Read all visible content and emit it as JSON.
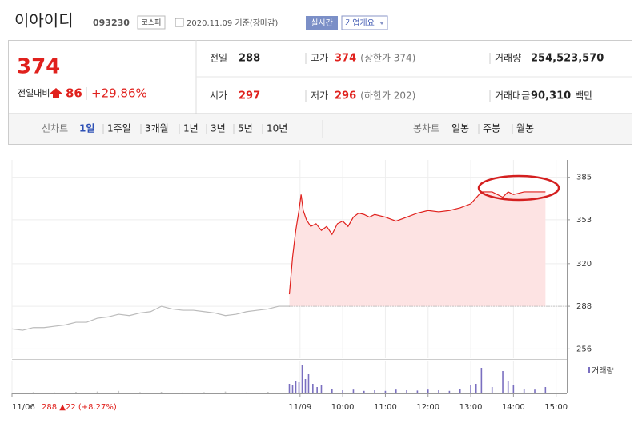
{
  "header": {
    "title": "이아이디",
    "code": "093230",
    "market": "코스피",
    "date": "2020.11.09 기준(장마감)",
    "realtime": "실시간",
    "company_info": "기업개요"
  },
  "quote": {
    "price": "374",
    "change_label": "전일대비",
    "change": "86",
    "change_pct": "+29.86%",
    "fields": [
      {
        "label": "전일",
        "value": "288",
        "color": "#222"
      },
      {
        "label": "고가",
        "value": "374",
        "extra": "(상한가 374)",
        "color": "#e0211d"
      },
      {
        "label": "거래량",
        "value": "254,523,570",
        "color": "#222"
      },
      {
        "label": "시가",
        "value": "297",
        "color": "#e0211d"
      },
      {
        "label": "저가",
        "value": "296",
        "extra": "(하한가 202)",
        "color": "#e0211d"
      },
      {
        "label": "거래대금",
        "value": "90,310",
        "extra": "백만",
        "color": "#222"
      }
    ]
  },
  "tabs": {
    "line_label": "선차트",
    "line": [
      "1일",
      "1주일",
      "3개월",
      "1년",
      "3년",
      "5년",
      "10년"
    ],
    "candle_label": "봉차트",
    "candle": [
      "일봉",
      "주봉",
      "월봉"
    ]
  },
  "chart_data": {
    "type": "line",
    "annotation": "288 ▲22 (+8.27%)",
    "series": [
      {
        "color": "#bbbbbb",
        "x": [
          0,
          1,
          2,
          3,
          4,
          5,
          6,
          7,
          8,
          9,
          10,
          11,
          12,
          13,
          14,
          15,
          16,
          17,
          18,
          19,
          20,
          21,
          22,
          23,
          24,
          25,
          26
        ],
        "values": [
          271,
          270,
          272,
          272,
          273,
          274,
          276,
          276,
          279,
          280,
          282,
          281,
          283,
          284,
          288,
          286,
          285,
          285,
          284,
          283,
          281,
          282,
          284,
          285,
          286,
          288,
          288
        ]
      },
      {
        "color": "#e0211d",
        "fill": "#fde3e3",
        "x": [
          26,
          26.3,
          26.6,
          26.9,
          27.1,
          27.3,
          27.6,
          28,
          28.5,
          29,
          29.5,
          30,
          30.5,
          31,
          31.5,
          32,
          32.5,
          33,
          33.5,
          34,
          35,
          36,
          37,
          38,
          39,
          40,
          41,
          42,
          43,
          44,
          45,
          46,
          46.5,
          47,
          48,
          49,
          50
        ],
        "values": [
          297,
          325,
          345,
          360,
          372,
          360,
          353,
          348,
          350,
          345,
          348,
          342,
          350,
          352,
          348,
          355,
          358,
          357,
          355,
          357,
          355,
          352,
          355,
          358,
          360,
          359,
          360,
          362,
          365,
          374,
          374,
          370,
          374,
          372,
          374,
          374,
          374
        ]
      }
    ],
    "reference": 288,
    "xlim": [
      0,
      52
    ],
    "ylim": [
      249,
      398
    ],
    "yticks": [
      256,
      288,
      320,
      353,
      385
    ],
    "xticks": [
      {
        "value": 0,
        "label": "11/06"
      },
      {
        "value": 27,
        "label": "11/09"
      },
      {
        "value": 31,
        "label": "10:00"
      },
      {
        "value": 35,
        "label": "11:00"
      },
      {
        "value": 39,
        "label": "12:00"
      },
      {
        "value": 43,
        "label": "13:00"
      },
      {
        "value": 47,
        "label": "14:00"
      },
      {
        "value": 51,
        "label": "15:00"
      }
    ],
    "volume": {
      "name": "거래량",
      "ylim": [
        0,
        100
      ],
      "series": [
        {
          "color": "#c8c8c8",
          "x": [
            2,
            4,
            6,
            8,
            10,
            12,
            14,
            16,
            18,
            20,
            22,
            24
          ],
          "values": [
            4,
            3,
            5,
            6,
            8,
            4,
            5,
            3,
            4,
            6,
            3,
            5
          ]
        },
        {
          "color": "#7a6fc0",
          "x": [
            26,
            26.3,
            26.6,
            26.9,
            27.2,
            27.5,
            27.8,
            28.2,
            28.6,
            29,
            30,
            31,
            32,
            33,
            34,
            35,
            36,
            37,
            38,
            39,
            40,
            41,
            42,
            43,
            43.5,
            44,
            45,
            46,
            46.5,
            47,
            48,
            49,
            50
          ],
          "values": [
            30,
            25,
            40,
            35,
            90,
            45,
            60,
            30,
            20,
            25,
            15,
            10,
            12,
            8,
            10,
            8,
            12,
            10,
            9,
            12,
            10,
            8,
            15,
            25,
            30,
            80,
            20,
            70,
            40,
            25,
            15,
            12,
            20
          ]
        }
      ]
    }
  }
}
